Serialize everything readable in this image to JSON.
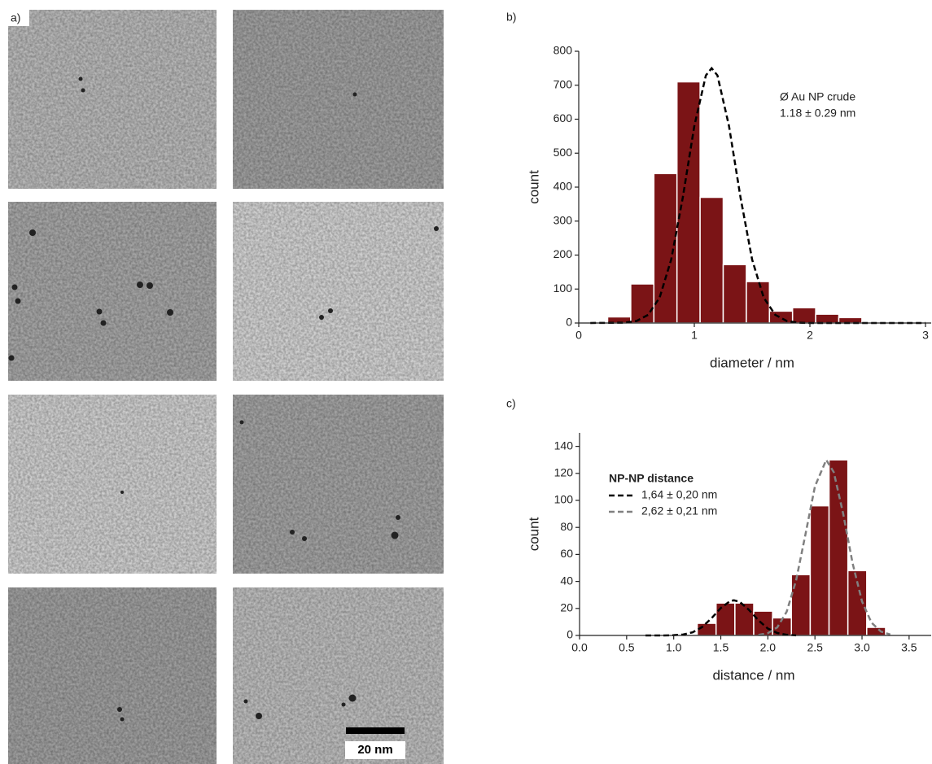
{
  "figure": {
    "panel_label": "a)",
    "scale_bar_label": "20 nm"
  },
  "chart_data": [
    {
      "type": "histogram",
      "panel_label": "b)",
      "xlabel": "diameter / nm",
      "ylabel": "count",
      "bins": [
        0.25,
        0.45,
        0.65,
        0.85,
        1.05,
        1.25,
        1.45,
        1.65,
        1.85,
        2.05,
        2.25,
        2.45
      ],
      "values": [
        18,
        115,
        440,
        710,
        370,
        172,
        122,
        35,
        45,
        26,
        16
      ],
      "color": "#7b1416",
      "xlim": [
        0,
        3
      ],
      "xticks": [
        0,
        1,
        2,
        3
      ],
      "ylim": [
        0,
        800
      ],
      "yticks": [
        0,
        100,
        200,
        300,
        400,
        500,
        600,
        700,
        800
      ],
      "annotations": [
        "Ø Au NP crude",
        "1.18 ± 0.29 nm"
      ],
      "fits": [
        {
          "color": "#000000",
          "x": [
            0.1,
            0.4,
            0.5,
            0.6,
            0.7,
            0.8,
            0.9,
            1.0,
            1.1,
            1.15,
            1.2,
            1.3,
            1.4,
            1.5,
            1.6,
            1.7,
            1.8,
            1.9,
            2.0,
            3.0
          ],
          "values": [
            0,
            1,
            6,
            24,
            75,
            187,
            369,
            580,
            729,
            750,
            729,
            580,
            369,
            187,
            75,
            24,
            6,
            1,
            0,
            0
          ]
        }
      ]
    },
    {
      "type": "histogram",
      "panel_label": "c)",
      "xlabel": "distance / nm",
      "ylabel": "count",
      "bins": [
        1.25,
        1.45,
        1.65,
        1.85,
        2.05,
        2.25,
        2.45,
        2.65,
        2.85,
        3.05,
        3.25
      ],
      "values": [
        9,
        24,
        24,
        18,
        13,
        45,
        96,
        130,
        48,
        6
      ],
      "color": "#7b1416",
      "xlim": [
        0,
        3.7
      ],
      "xticks": [
        {
          "value": 0,
          "label": "0.0"
        },
        {
          "value": 0.5,
          "label": "0.5"
        },
        {
          "value": 1,
          "label": "1.0"
        },
        {
          "value": 1.5,
          "label": "1.5"
        },
        {
          "value": 2,
          "label": "2.0"
        },
        {
          "value": 2.5,
          "label": "2.5"
        },
        {
          "value": 3,
          "label": "3.0"
        },
        {
          "value": 3.5,
          "label": "3.5"
        }
      ],
      "ylim": [
        0,
        150
      ],
      "yticks": [
        0,
        20,
        40,
        60,
        80,
        100,
        120,
        140
      ],
      "legend_title": "NP-NP distance",
      "fits": [
        {
          "name": "1,64 ± 0,20 nm",
          "color": "#000000",
          "x": [
            0.7,
            0.9,
            1.0,
            1.1,
            1.2,
            1.3,
            1.4,
            1.5,
            1.6,
            1.64,
            1.7,
            1.8,
            1.9,
            2.0,
            2.1,
            2.2,
            2.3
          ],
          "values": [
            0,
            0,
            0.2,
            0.7,
            2.3,
            6.1,
            12.6,
            20.3,
            25.5,
            26,
            24.9,
            18.9,
            11.2,
            5.1,
            1.8,
            0.5,
            0.1
          ]
        },
        {
          "name": "2,62 ± 0,21 nm",
          "color": "#808080",
          "x": [
            1.9,
            2.0,
            2.1,
            2.2,
            2.3,
            2.4,
            2.5,
            2.62,
            2.7,
            2.8,
            2.9,
            3.0,
            3.1,
            3.2,
            3.3
          ],
          "values": [
            0.4,
            1.7,
            6.0,
            17.6,
            40.8,
            75.1,
            110.4,
            130,
            120.9,
            90.1,
            53.4,
            25.2,
            9.5,
            2.9,
            0.7
          ]
        }
      ]
    }
  ]
}
